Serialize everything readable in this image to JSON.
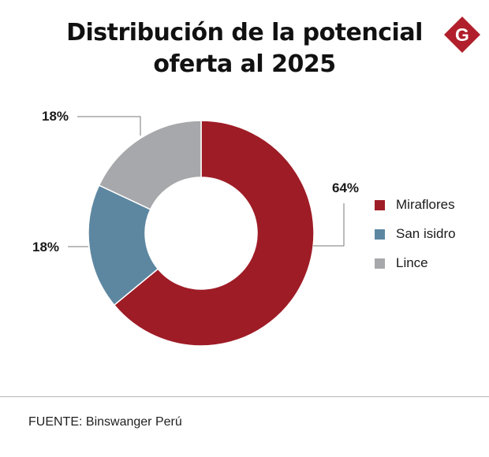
{
  "title": {
    "line1": "Distribución de la potencial",
    "line2": "oferta al 2025"
  },
  "logo": {
    "letter": "G",
    "color": "#b01f2b"
  },
  "chart_data": {
    "type": "pie",
    "variant": "donut",
    "title": "Distribución de la potencial oferta al 2025",
    "unit": "%",
    "slices": [
      {
        "name": "Miraflores",
        "value": 64,
        "label": "64%",
        "color": "#9e1c26"
      },
      {
        "name": "San isidro",
        "value": 18,
        "label": "18%",
        "color": "#5d87a1"
      },
      {
        "name": "Lince",
        "value": 18,
        "label": "18%",
        "color": "#a7a8ab"
      }
    ],
    "legend_position": "right"
  },
  "footer": {
    "source": "FUENTE: Binswanger Perú"
  }
}
